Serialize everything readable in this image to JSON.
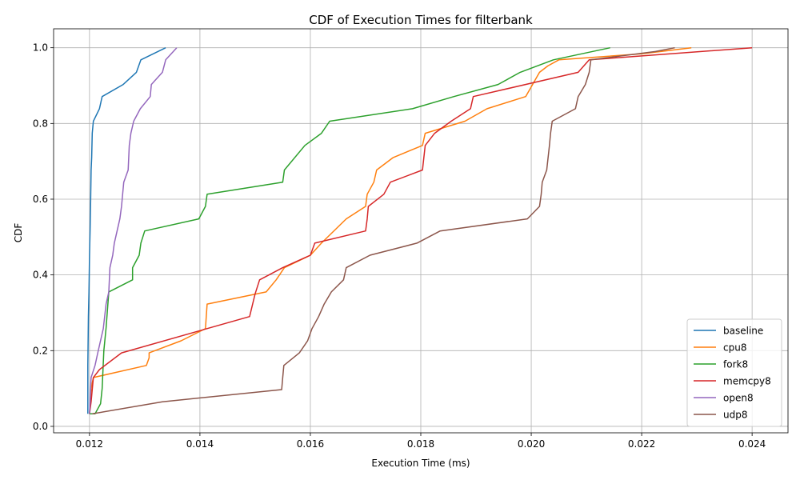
{
  "chart_data": {
    "type": "line",
    "title": "CDF of Execution Times for filterbank",
    "xlabel": "Execution Time (ms)",
    "ylabel": "CDF",
    "xlim": [
      0.01135,
      0.02465
    ],
    "ylim": [
      -0.017,
      1.05
    ],
    "xticks": [
      0.012,
      0.014,
      0.016,
      0.018,
      0.02,
      0.022,
      0.024
    ],
    "xtick_labels": [
      "0.012",
      "0.014",
      "0.016",
      "0.018",
      "0.020",
      "0.022",
      "0.024"
    ],
    "yticks": [
      0.0,
      0.2,
      0.4,
      0.6,
      0.8,
      1.0
    ],
    "ytick_labels": [
      "0.0",
      "0.2",
      "0.4",
      "0.6",
      "0.8",
      "1.0"
    ],
    "grid": true,
    "legend_position": "lower-right",
    "series": [
      {
        "name": "baseline",
        "color": "#1f77b4",
        "x": [
          0.01197,
          0.01197,
          0.01198,
          0.01199,
          0.012,
          0.01201,
          0.01202,
          0.01203,
          0.01204,
          0.01205,
          0.01207,
          0.01218,
          0.01223,
          0.01261,
          0.01285,
          0.01293,
          0.01338
        ],
        "y": [
          0.033,
          0.161,
          0.29,
          0.355,
          0.452,
          0.516,
          0.581,
          0.677,
          0.71,
          0.774,
          0.806,
          0.839,
          0.871,
          0.903,
          0.935,
          0.968,
          1.0
        ]
      },
      {
        "name": "cpu8",
        "color": "#ff7f0e",
        "x": [
          0.012,
          0.01203,
          0.01207,
          0.01303,
          0.01308,
          0.01308,
          0.01366,
          0.0141,
          0.01413,
          0.0152,
          0.01538,
          0.01553,
          0.016,
          0.0162,
          0.01665,
          0.017,
          0.01703,
          0.01715,
          0.0172,
          0.0175,
          0.01803,
          0.01808,
          0.0188,
          0.0192,
          0.0199,
          0.02015,
          0.0203,
          0.0205,
          0.022,
          0.0229
        ],
        "y": [
          0.033,
          0.1,
          0.129,
          0.161,
          0.181,
          0.194,
          0.226,
          0.258,
          0.323,
          0.355,
          0.387,
          0.419,
          0.452,
          0.484,
          0.548,
          0.581,
          0.613,
          0.645,
          0.677,
          0.71,
          0.742,
          0.774,
          0.806,
          0.839,
          0.871,
          0.935,
          0.952,
          0.968,
          0.984,
          1.0
        ]
      },
      {
        "name": "fork8",
        "color": "#2ca02c",
        "x": [
          0.012,
          0.0121,
          0.0122,
          0.01223,
          0.01226,
          0.0123,
          0.01235,
          0.01278,
          0.01278,
          0.0129,
          0.01293,
          0.013,
          0.01398,
          0.0141,
          0.01413,
          0.0155,
          0.01553,
          0.0159,
          0.0162,
          0.01635,
          0.01785,
          0.0186,
          0.0194,
          0.0198,
          0.0204,
          0.02143
        ],
        "y": [
          0.033,
          0.033,
          0.06,
          0.1,
          0.2,
          0.26,
          0.355,
          0.387,
          0.419,
          0.452,
          0.484,
          0.516,
          0.548,
          0.581,
          0.613,
          0.645,
          0.677,
          0.742,
          0.774,
          0.806,
          0.839,
          0.871,
          0.903,
          0.935,
          0.968,
          1.0
        ]
      },
      {
        "name": "memcpy8",
        "color": "#d62728",
        "x": [
          0.012,
          0.01203,
          0.01207,
          0.01218,
          0.01258,
          0.0149,
          0.015,
          0.01508,
          0.0155,
          0.016,
          0.01608,
          0.017,
          0.01703,
          0.01705,
          0.01733,
          0.01745,
          0.01803,
          0.01808,
          0.01825,
          0.01855,
          0.0189,
          0.01895,
          0.02085,
          0.02105,
          0.024
        ],
        "y": [
          0.033,
          0.065,
          0.129,
          0.15,
          0.194,
          0.29,
          0.35,
          0.387,
          0.419,
          0.452,
          0.484,
          0.516,
          0.548,
          0.581,
          0.613,
          0.645,
          0.677,
          0.742,
          0.774,
          0.806,
          0.839,
          0.871,
          0.935,
          0.968,
          1.0
        ]
      },
      {
        "name": "open8",
        "color": "#9467bd",
        "x": [
          0.012,
          0.01203,
          0.0121,
          0.01215,
          0.01225,
          0.0123,
          0.01235,
          0.01237,
          0.01242,
          0.01245,
          0.01255,
          0.01258,
          0.0126,
          0.01262,
          0.0127,
          0.01272,
          0.01275,
          0.0128,
          0.01292,
          0.0131,
          0.01312,
          0.01332,
          0.01338,
          0.01358
        ],
        "y": [
          0.033,
          0.129,
          0.161,
          0.194,
          0.258,
          0.323,
          0.355,
          0.419,
          0.452,
          0.484,
          0.548,
          0.581,
          0.613,
          0.645,
          0.677,
          0.742,
          0.774,
          0.806,
          0.839,
          0.871,
          0.903,
          0.935,
          0.968,
          1.0
        ]
      },
      {
        "name": "udp8",
        "color": "#8c564b",
        "x": [
          0.01205,
          0.01332,
          0.01548,
          0.0155,
          0.01552,
          0.0158,
          0.01595,
          0.01603,
          0.01615,
          0.01625,
          0.01638,
          0.0166,
          0.01665,
          0.01708,
          0.01793,
          0.01835,
          0.01993,
          0.02015,
          0.02018,
          0.0202,
          0.02028,
          0.02033,
          0.02035,
          0.02038,
          0.0208,
          0.02085,
          0.02098,
          0.02105,
          0.02108,
          0.02225,
          0.0226
        ],
        "y": [
          0.033,
          0.065,
          0.097,
          0.129,
          0.161,
          0.194,
          0.226,
          0.258,
          0.29,
          0.323,
          0.355,
          0.387,
          0.419,
          0.452,
          0.484,
          0.516,
          0.548,
          0.581,
          0.613,
          0.645,
          0.677,
          0.742,
          0.774,
          0.806,
          0.839,
          0.871,
          0.903,
          0.935,
          0.968,
          0.99,
          1.0
        ]
      }
    ]
  }
}
